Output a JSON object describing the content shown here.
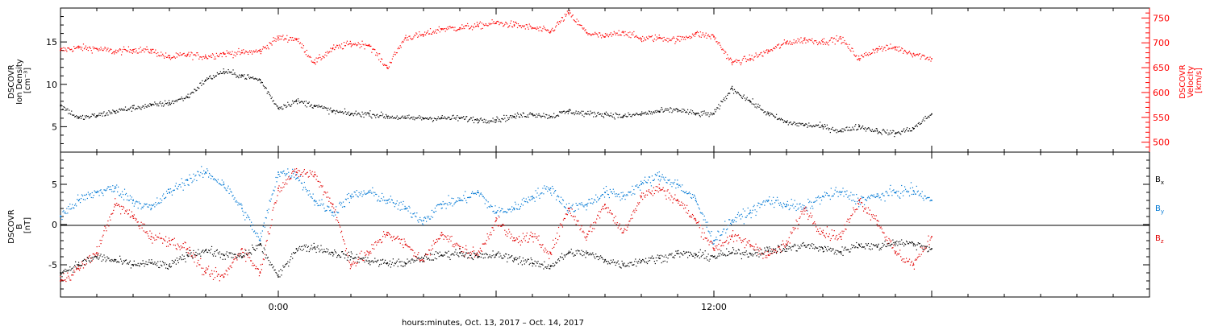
{
  "chart_data": [
    {
      "type": "scatter",
      "panel": "top",
      "ylabel_lines": [
        "DSCOVR",
        "Ion Density",
        "[cm⁻³]"
      ],
      "y2label_lines": [
        "DSCOVR",
        "Velocity",
        "[km/s]"
      ],
      "ylim": [
        2,
        19
      ],
      "y2lim": [
        480,
        770
      ],
      "yticks": [
        "5",
        "10",
        "15"
      ],
      "y2ticks": [
        "500",
        "550",
        "600",
        "650",
        "700",
        "750"
      ],
      "series": [
        {
          "axis": "left",
          "color": "#000000",
          "x_hours": [
            -6,
            -5.5,
            -5,
            -4.5,
            -4,
            -3.5,
            -3,
            -2.5,
            -2,
            -1.5,
            -1,
            -0.5,
            0,
            0.5,
            1,
            1.5,
            2,
            2.5,
            3,
            3.5,
            4,
            4.5,
            5,
            5.5,
            6,
            6.5,
            7,
            7.5,
            8,
            8.5,
            9,
            9.5,
            10,
            10.5,
            11,
            11.5,
            12,
            12.5,
            13,
            13.5,
            14,
            14.5,
            15,
            15.5,
            16,
            16.5,
            17,
            17.5,
            18
          ],
          "values": [
            7.5,
            6,
            6.3,
            6.8,
            7.2,
            7.5,
            7.8,
            8.5,
            10.5,
            11.5,
            11,
            10.5,
            7.2,
            8,
            7.5,
            6.8,
            6.5,
            6.5,
            6.2,
            6,
            6,
            6,
            6,
            5.8,
            5.8,
            6.2,
            6.5,
            6.2,
            6.8,
            6.5,
            6.5,
            6.2,
            6.5,
            6.8,
            7,
            6.5,
            6.5,
            9.5,
            8,
            6.5,
            5.5,
            5.2,
            5,
            4.5,
            5,
            4.5,
            4.2,
            4.8,
            6.5
          ]
        },
        {
          "axis": "right",
          "color": "#ff0000",
          "x_hours": [
            -6,
            -5.5,
            -5,
            -4.5,
            -4,
            -3.5,
            -3,
            -2.5,
            -2,
            -1.5,
            -1,
            -0.5,
            0,
            0.5,
            1,
            1.5,
            2,
            2.5,
            3,
            3.5,
            4,
            4.5,
            5,
            5.5,
            6,
            6.5,
            7,
            7.5,
            8,
            8.5,
            9,
            9.5,
            10,
            10.5,
            11,
            11.5,
            12,
            12.5,
            13,
            13.5,
            14,
            14.5,
            15,
            15.5,
            16,
            16.5,
            17,
            17.5,
            18
          ],
          "values": [
            685,
            690,
            688,
            682,
            686,
            684,
            670,
            676,
            672,
            678,
            680,
            683,
            710,
            708,
            660,
            688,
            698,
            696,
            650,
            710,
            716,
            728,
            730,
            734,
            740,
            736,
            730,
            722,
            760,
            720,
            712,
            722,
            708,
            710,
            706,
            718,
            712,
            660,
            668,
            683,
            700,
            706,
            702,
            708,
            668,
            688,
            690,
            678,
            668
          ]
        }
      ]
    },
    {
      "type": "scatter",
      "panel": "bottom",
      "ylabel_lines": [
        "DSCOVR",
        "B",
        "[nT]"
      ],
      "ylim": [
        -9,
        9
      ],
      "yticks": [
        "-5",
        "0",
        "5"
      ],
      "zero_line": true,
      "legend_position": "right",
      "series": [
        {
          "name": "B",
          "subscript": "x",
          "color": "#000000",
          "x_hours": [
            -6,
            -5.5,
            -5,
            -4.5,
            -4,
            -3.5,
            -3,
            -2.5,
            -2,
            -1.5,
            -1,
            -0.5,
            0,
            0.5,
            1,
            1.5,
            2,
            2.5,
            3,
            3.5,
            4,
            4.5,
            5,
            5.5,
            6,
            6.5,
            7,
            7.5,
            8,
            8.5,
            9,
            9.5,
            10,
            10.5,
            11,
            11.5,
            12,
            12.5,
            13,
            13.5,
            14,
            14.5,
            15,
            15.5,
            16,
            16.5,
            17,
            17.5,
            18
          ],
          "values": [
            -6,
            -5,
            -4,
            -4.5,
            -5,
            -4.8,
            -5.2,
            -3.8,
            -3.2,
            -3.8,
            -4,
            -2.5,
            -6.5,
            -3,
            -2.8,
            -3.5,
            -4,
            -4.5,
            -4.8,
            -4.8,
            -4.2,
            -3.8,
            -3.5,
            -4,
            -3.8,
            -4.2,
            -4.8,
            -5.2,
            -3.5,
            -3.6,
            -4.4,
            -5,
            -4.5,
            -4.2,
            -3.6,
            -3.8,
            -4,
            -3.5,
            -3.6,
            -3.2,
            -3,
            -2.6,
            -3,
            -3.4,
            -2.5,
            -2.8,
            -2.2,
            -2.4,
            -3
          ]
        },
        {
          "name": "B",
          "subscript": "y",
          "color": "#0078d4",
          "x_hours": [
            -6,
            -5.5,
            -5,
            -4.5,
            -4,
            -3.5,
            -3,
            -2.5,
            -2,
            -1.5,
            -1,
            -0.5,
            0,
            0.5,
            1,
            1.5,
            2,
            2.5,
            3,
            3.5,
            4,
            4.5,
            5,
            5.5,
            6,
            6.5,
            7,
            7.5,
            8,
            8.5,
            9,
            9.5,
            10,
            10.5,
            11,
            11.5,
            12,
            12.5,
            13,
            13.5,
            14,
            14.5,
            15,
            15.5,
            16,
            16.5,
            17,
            17.5,
            18
          ],
          "values": [
            1,
            3,
            4,
            4.5,
            3,
            2,
            4,
            5.5,
            6.5,
            5,
            2,
            -2,
            6.5,
            6.2,
            3,
            1.5,
            3.5,
            4,
            3,
            2,
            0.5,
            2.5,
            3,
            4,
            1.5,
            2,
            3.5,
            4.5,
            2,
            2.5,
            4,
            3.5,
            5,
            6,
            5,
            3,
            -2,
            0.5,
            1.5,
            3,
            2.5,
            2,
            3.5,
            4,
            3,
            3.5,
            4,
            4.2,
            3
          ]
        },
        {
          "name": "B",
          "subscript": "z",
          "color": "#e00000",
          "x_hours": [
            -6,
            -5.5,
            -5,
            -4.5,
            -4,
            -3.5,
            -3,
            -2.5,
            -2,
            -1.5,
            -1,
            -0.5,
            0,
            0.5,
            1,
            1.5,
            2,
            2.5,
            3,
            3.5,
            4,
            4.5,
            5,
            5.5,
            6,
            6.5,
            7,
            7.5,
            8,
            8.5,
            9,
            9.5,
            10,
            10.5,
            11,
            11.5,
            12,
            12.5,
            13,
            13.5,
            14,
            14.5,
            15,
            15.5,
            16,
            16.5,
            17,
            17.5,
            18
          ],
          "values": [
            -7,
            -5.5,
            -3.5,
            2.5,
            1,
            -1.5,
            -2,
            -3,
            -6,
            -6.5,
            -3,
            -6,
            4.5,
            6.5,
            6.2,
            2.5,
            -5,
            -3.5,
            -1,
            -2.5,
            -4.5,
            -1,
            -3,
            -3.8,
            0.5,
            -2,
            -1.5,
            -3.5,
            2,
            -1.5,
            2.5,
            -1,
            3.5,
            4.5,
            3,
            0.5,
            -3,
            -1.5,
            -2.5,
            -3.8,
            -2.5,
            2,
            -1,
            -1.5,
            3,
            0.5,
            -3.5,
            -5,
            -1.5
          ]
        }
      ]
    }
  ],
  "x_axis": {
    "tick_labels": [
      {
        "hour": 0,
        "label": "0:00"
      },
      {
        "hour": 12,
        "label": "12:00"
      }
    ],
    "xlim_hours": [
      -6,
      24
    ],
    "data_end_hour": 18
  },
  "footer": {
    "xlabel": "hours:minutes, Oct. 13, 2017 – Oct. 14, 2017"
  },
  "legend": {
    "bx": "B",
    "bx_sub": "x",
    "by": "B",
    "by_sub": "y",
    "bz": "B",
    "bz_sub": "z"
  },
  "colors": {
    "velocity_axis": "#ff0000",
    "density": "#000000",
    "by": "#0078d4",
    "bz": "#e00000"
  }
}
